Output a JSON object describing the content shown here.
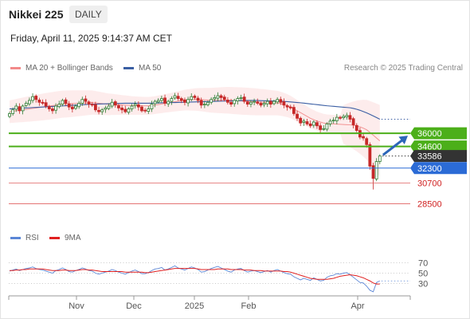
{
  "header": {
    "title": "Nikkei 225",
    "timeframe": "DAILY",
    "timestamp": "Friday, April 11, 2025 9:14:37 AM CET"
  },
  "legend": {
    "bollinger": "MA 20 + Bollinger Bands",
    "ma50": "MA 50",
    "credit": "Research © 2025 Trading Central",
    "rsi": "RSI",
    "rsi_ma": "9MA"
  },
  "colors": {
    "bollinger": "#f28a8a",
    "ma50": "#3a5ea3",
    "up": "#2e7d32",
    "down": "#c62828",
    "resistance": "#4caf1a",
    "support": "#2b6bd6",
    "support_low": "#e06060",
    "arrow": "#2c66b8"
  },
  "chart_data": [
    {
      "type": "candlestick",
      "y_range": [
        26000,
        41700
      ],
      "x_ticks": [
        "Nov",
        "Dec",
        "2025",
        "Feb",
        "Apr"
      ],
      "last_price": 33586,
      "levels": [
        {
          "value": 36000,
          "label": "36000",
          "kind": "resistance"
        },
        {
          "value": 34600,
          "label": "34600",
          "kind": "resistance"
        },
        {
          "value": 33586,
          "label": "33586",
          "kind": "price"
        },
        {
          "value": 32300,
          "label": "32300",
          "kind": "support"
        },
        {
          "value": 30700,
          "label": "30700",
          "kind": "support_low"
        },
        {
          "value": 28500,
          "label": "28500",
          "kind": "support_low"
        }
      ],
      "close": [
        38100,
        38500,
        38900,
        38400,
        38900,
        39200,
        39500,
        39900,
        39600,
        39300,
        39200,
        38900,
        38600,
        38400,
        38900,
        39100,
        39500,
        39200,
        38800,
        38600,
        38900,
        39200,
        39600,
        39400,
        39100,
        39000,
        38500,
        38300,
        38500,
        38700,
        38900,
        39300,
        39000,
        38700,
        38500,
        38300,
        38600,
        38900,
        39100,
        38800,
        38400,
        38400,
        38600,
        39100,
        39400,
        39500,
        39700,
        39200,
        39400,
        39700,
        40000,
        39700,
        39500,
        39300,
        39600,
        39900,
        39800,
        39500,
        39000,
        39100,
        39300,
        39600,
        39800,
        40000,
        39800,
        39600,
        39300,
        39100,
        39500,
        39700,
        39800,
        39400,
        39100,
        39300,
        39400,
        39200,
        39000,
        39200,
        39400,
        39100,
        39400,
        39600,
        39300,
        39000,
        38800,
        38700,
        38100,
        37600,
        37100,
        37300,
        37000,
        36800,
        37200,
        36800,
        36400,
        36500,
        37000,
        37300,
        37400,
        37700,
        37600,
        37800,
        37900,
        37500,
        36900,
        36300,
        35600,
        35500,
        34800,
        32500,
        31200,
        33000,
        33586
      ],
      "ma20": [
        38300,
        38350,
        38400,
        38450,
        38500,
        38550,
        38600,
        38650,
        38700,
        38750,
        38800,
        38850,
        38900,
        38950,
        39000,
        39050,
        39100,
        39120,
        39140,
        39160,
        39180,
        39200,
        39220,
        39240,
        39260,
        39280,
        39240,
        39200,
        39160,
        39120,
        39080,
        39080,
        39060,
        39040,
        39020,
        39000,
        38980,
        38960,
        38950,
        38940,
        38930,
        38920,
        38930,
        38960,
        39000,
        39060,
        39120,
        39180,
        39240,
        39300,
        39360,
        39420,
        39480,
        39540,
        39560,
        39580,
        39600,
        39600,
        39580,
        39560,
        39540,
        39520,
        39520,
        39520,
        39520,
        39520,
        39520,
        39500,
        39480,
        39460,
        39440,
        39420,
        39400,
        39380,
        39360,
        39340,
        39320,
        39300,
        39280,
        39260,
        39240,
        39220,
        39150,
        39050,
        38950,
        38800,
        38600,
        38400,
        38200,
        38000,
        37800,
        37600,
        37450,
        37300,
        37200,
        37100,
        37050,
        37020,
        37000,
        36980,
        36960,
        36940,
        36920,
        36900,
        36850,
        36780,
        36680,
        36550,
        36380,
        36100,
        35800,
        35500,
        35200
      ],
      "ma50": [
        38600,
        38620,
        38640,
        38660,
        38680,
        38700,
        38720,
        38740,
        38760,
        38780,
        38800,
        38820,
        38840,
        38860,
        38880,
        38900,
        38920,
        38940,
        38960,
        38980,
        39000,
        39020,
        39040,
        39060,
        39080,
        39100,
        39110,
        39120,
        39130,
        39140,
        39150,
        39160,
        39170,
        39180,
        39190,
        39200,
        39200,
        39200,
        39200,
        39200,
        39200,
        39200,
        39200,
        39210,
        39220,
        39230,
        39240,
        39250,
        39260,
        39270,
        39280,
        39290,
        39300,
        39310,
        39320,
        39330,
        39340,
        39350,
        39360,
        39370,
        39380,
        39390,
        39400,
        39410,
        39420,
        39430,
        39440,
        39450,
        39460,
        39470,
        39480,
        39490,
        39500,
        39500,
        39500,
        39490,
        39480,
        39470,
        39460,
        39450,
        39440,
        39430,
        39410,
        39390,
        39370,
        39340,
        39310,
        39280,
        39250,
        39210,
        39170,
        39130,
        39090,
        39050,
        39010,
        38970,
        38930,
        38900,
        38870,
        38840,
        38810,
        38780,
        38750,
        38720,
        38650,
        38560,
        38450,
        38320,
        38180,
        38020,
        37850,
        37680,
        37500
      ]
    },
    {
      "type": "line",
      "y_range": [
        0,
        100
      ],
      "y_ticks": [
        70,
        50,
        30
      ],
      "series_names": [
        "RSI",
        "9MA"
      ],
      "rsi": [
        54,
        56,
        58,
        55,
        57,
        59,
        60,
        62,
        59,
        57,
        56,
        54,
        52,
        50,
        55,
        57,
        60,
        57,
        53,
        52,
        55,
        57,
        60,
        58,
        55,
        54,
        50,
        48,
        50,
        52,
        54,
        57,
        55,
        52,
        50,
        48,
        51,
        54,
        56,
        53,
        49,
        49,
        51,
        55,
        58,
        59,
        61,
        56,
        58,
        61,
        64,
        60,
        58,
        56,
        59,
        62,
        60,
        57,
        52,
        53,
        56,
        59,
        61,
        63,
        60,
        57,
        54,
        52,
        56,
        58,
        59,
        55,
        52,
        54,
        55,
        53,
        51,
        53,
        55,
        52,
        55,
        57,
        54,
        51,
        49,
        48,
        43,
        40,
        37,
        40,
        38,
        36,
        41,
        38,
        35,
        36,
        42,
        45,
        46,
        49,
        48,
        50,
        51,
        47,
        42,
        37,
        32,
        31,
        25,
        17,
        14,
        32,
        35
      ],
      "rsi_ma": [
        55,
        55,
        56,
        56,
        57,
        57,
        58,
        58,
        58,
        58,
        58,
        57,
        56,
        55,
        55,
        55,
        56,
        56,
        55,
        55,
        55,
        56,
        57,
        57,
        56,
        56,
        55,
        54,
        53,
        53,
        53,
        53,
        53,
        53,
        53,
        52,
        52,
        52,
        52,
        52,
        52,
        51,
        51,
        52,
        53,
        54,
        55,
        56,
        57,
        58,
        59,
        59,
        59,
        59,
        59,
        59,
        59,
        58,
        57,
        57,
        57,
        57,
        57,
        58,
        58,
        58,
        58,
        57,
        57,
        57,
        57,
        56,
        56,
        56,
        55,
        55,
        55,
        54,
        54,
        54,
        54,
        54,
        54,
        53,
        53,
        52,
        50,
        48,
        46,
        44,
        42,
        40,
        39,
        38,
        38,
        38,
        38,
        39,
        40,
        42,
        44,
        45,
        46,
        47,
        46,
        45,
        43,
        41,
        38,
        35,
        31,
        29,
        29
      ]
    }
  ]
}
